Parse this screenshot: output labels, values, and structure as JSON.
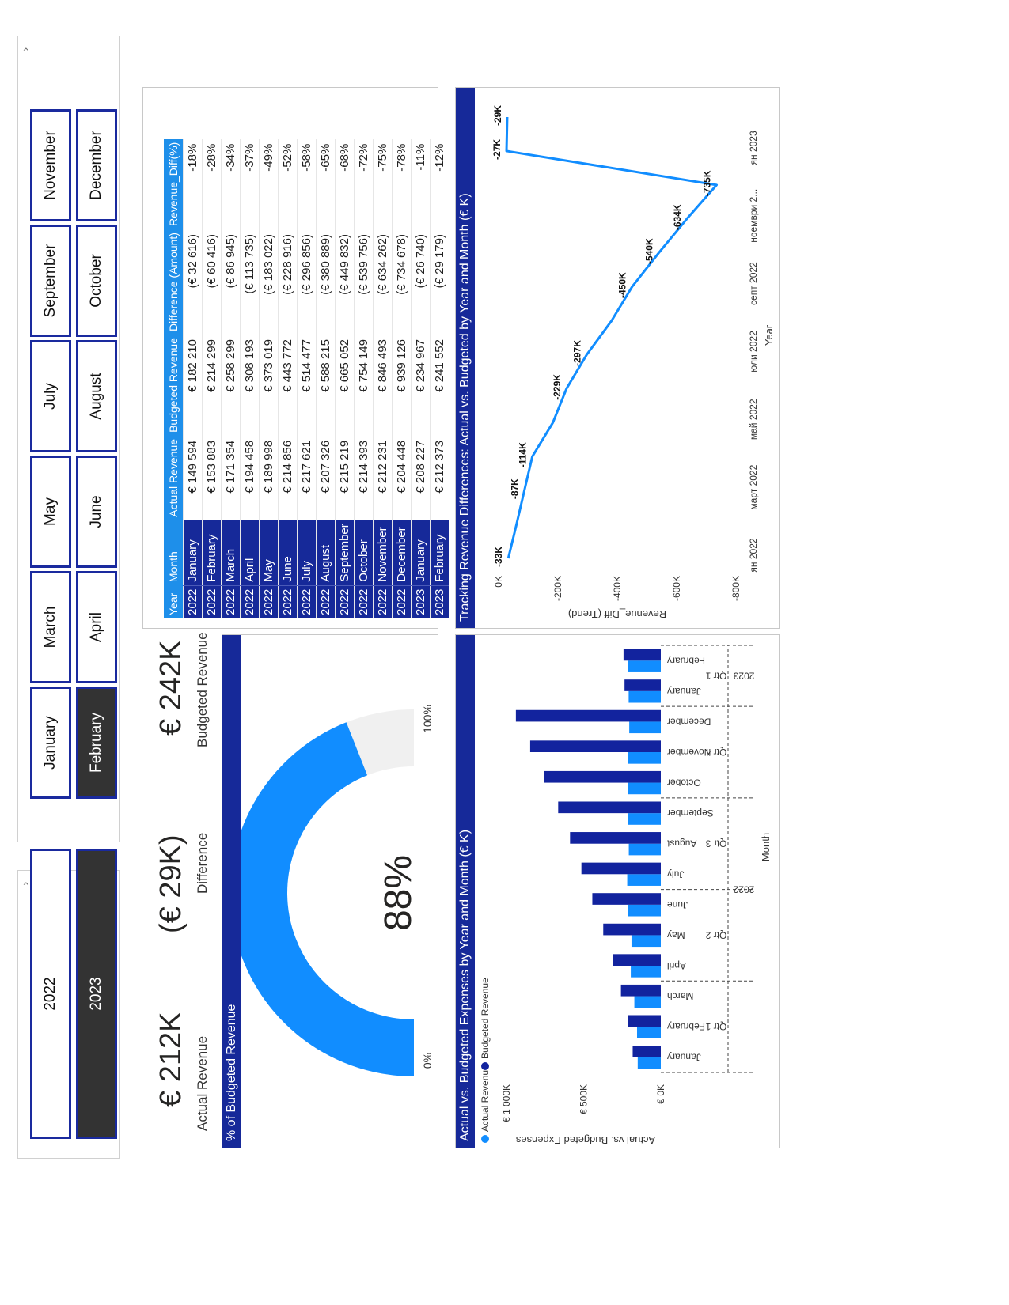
{
  "slicers": {
    "years": [
      {
        "label": "2022",
        "selected": false
      },
      {
        "label": "2023",
        "selected": true
      }
    ],
    "months_row1": [
      {
        "label": "January",
        "selected": false
      },
      {
        "label": "March",
        "selected": false
      },
      {
        "label": "May",
        "selected": false
      },
      {
        "label": "July",
        "selected": false
      },
      {
        "label": "September",
        "selected": false
      },
      {
        "label": "November",
        "selected": false
      }
    ],
    "months_row2": [
      {
        "label": "February",
        "selected": true
      },
      {
        "label": "April",
        "selected": false
      },
      {
        "label": "June",
        "selected": false
      },
      {
        "label": "August",
        "selected": false
      },
      {
        "label": "October",
        "selected": false
      },
      {
        "label": "December",
        "selected": false
      }
    ]
  },
  "cards": {
    "actual_value": "€ 212K",
    "actual_label": "Actual Revenue",
    "diff_value": "(€ 29K)",
    "diff_label": "Difference",
    "budget_value": "€ 242K",
    "budget_label": "Budgeted Revenue"
  },
  "table": {
    "headers": [
      "Year",
      "Month",
      "Actual Revenue",
      "Budgeted Revenue",
      "Difference (Amount)",
      "Revenue_Diff(%)"
    ],
    "rows": [
      [
        "2022",
        "January",
        "€ 149 594",
        "€ 182 210",
        "(€ 32 616)",
        "-18%"
      ],
      [
        "2022",
        "February",
        "€ 153 883",
        "€ 214 299",
        "(€ 60 416)",
        "-28%"
      ],
      [
        "2022",
        "March",
        "€ 171 354",
        "€ 258 299",
        "(€ 86 945)",
        "-34%"
      ],
      [
        "2022",
        "April",
        "€ 194 458",
        "€ 308 193",
        "(€ 113 735)",
        "-37%"
      ],
      [
        "2022",
        "May",
        "€ 189 998",
        "€ 373 019",
        "(€ 183 022)",
        "-49%"
      ],
      [
        "2022",
        "June",
        "€ 214 856",
        "€ 443 772",
        "(€ 228 916)",
        "-52%"
      ],
      [
        "2022",
        "July",
        "€ 217 621",
        "€ 514 477",
        "(€ 296 856)",
        "-58%"
      ],
      [
        "2022",
        "August",
        "€ 207 326",
        "€ 588 215",
        "(€ 380 889)",
        "-65%"
      ],
      [
        "2022",
        "September",
        "€ 215 219",
        "€ 665 052",
        "(€ 449 832)",
        "-68%"
      ],
      [
        "2022",
        "October",
        "€ 214 393",
        "€ 754 149",
        "(€ 539 756)",
        "-72%"
      ],
      [
        "2022",
        "November",
        "€ 212 231",
        "€ 846 493",
        "(€ 634 262)",
        "-75%"
      ],
      [
        "2022",
        "December",
        "€ 204 448",
        "€ 939 126",
        "(€ 734 678)",
        "-78%"
      ],
      [
        "2023",
        "January",
        "€ 208 227",
        "€ 234 967",
        "(€ 26 740)",
        "-11%"
      ],
      [
        "2023",
        "February",
        "€ 212 373",
        "€ 241 552",
        "(€ 29 179)",
        "-12%"
      ]
    ]
  },
  "gauge": {
    "title": "% of Budgeted Revenue",
    "value_label": "88%",
    "value_fraction": 0.88,
    "min_label": "0%",
    "max_label": "100%",
    "fill_color": "#118dff",
    "track_color": "#f0f0f0"
  },
  "charts": [
    {
      "id": "bar",
      "type": "bar",
      "title": "Actual vs. Budgeted Expenses by Year and Month (€ K)",
      "legend": [
        {
          "name": "Actual Revenue",
          "color": "#118dff"
        },
        {
          "name": "Budgeted Revenue",
          "color": "#12239e"
        }
      ],
      "ylabel": "Actual vs. Budgeted Expenses",
      "xlabel": "Month",
      "yticks": [
        "€ 0K",
        "€ 500K",
        "€ 1 000K"
      ],
      "ylim": [
        0,
        1000
      ],
      "categories": [
        "January",
        "February",
        "March",
        "April",
        "May",
        "June",
        "July",
        "August",
        "September",
        "October",
        "November",
        "December",
        "January",
        "February"
      ],
      "quarters": [
        {
          "label": "Qtr 1",
          "start": 0,
          "end": 3
        },
        {
          "label": "Qtr 2",
          "start": 3,
          "end": 6
        },
        {
          "label": "Qtr 3",
          "start": 6,
          "end": 9
        },
        {
          "label": "Qtr 4",
          "start": 9,
          "end": 12
        },
        {
          "label": "Qtr 1",
          "start": 12,
          "end": 14
        }
      ],
      "years": [
        {
          "label": "2022",
          "start": 0,
          "end": 12
        },
        {
          "label": "2023",
          "start": 12,
          "end": 14
        }
      ],
      "series": [
        {
          "name": "Actual Revenue",
          "color": "#118dff",
          "values": [
            149.6,
            153.9,
            171.4,
            194.5,
            190.0,
            214.9,
            217.6,
            207.3,
            215.2,
            214.4,
            212.2,
            204.4,
            208.2,
            212.4
          ]
        },
        {
          "name": "Budgeted Revenue",
          "color": "#12239e",
          "values": [
            182.2,
            214.3,
            258.3,
            308.2,
            373.0,
            443.8,
            514.5,
            588.2,
            665.1,
            754.1,
            846.5,
            939.1,
            235.0,
            241.6
          ]
        }
      ]
    },
    {
      "id": "line",
      "type": "line",
      "title": "Tracking Revenue Differences: Actual vs. Budgeted by Year and Month (€ K)",
      "ylabel": "Revenue_Diff (Trend)",
      "xlabel": "Year",
      "yticks": [
        "0K",
        "-200K",
        "-400K",
        "-600K",
        "-800K"
      ],
      "ylim": [
        -800,
        0
      ],
      "xticks": [
        "ян 2022",
        "март 2022",
        "май 2022",
        "юли 2022",
        "септ 2022",
        "ноември 2...",
        "ян 2023"
      ],
      "color": "#118dff",
      "x": [
        "2022-01",
        "2022-02",
        "2022-03",
        "2022-04",
        "2022-05",
        "2022-06",
        "2022-07",
        "2022-08",
        "2022-09",
        "2022-10",
        "2022-11",
        "2022-12",
        "2023-01",
        "2023-02"
      ],
      "values": [
        -32.6,
        -60.4,
        -86.9,
        -113.7,
        -183.0,
        -228.9,
        -296.9,
        -380.9,
        -449.8,
        -539.8,
        -634.3,
        -734.7,
        -26.7,
        -29.2
      ],
      "labels": [
        "-33K",
        "",
        "-87K",
        "-114K",
        "",
        "-229K",
        "-297K",
        "",
        "-450K",
        "-540K",
        "-634K",
        "-735K",
        "-27K",
        "-29K"
      ]
    }
  ]
}
